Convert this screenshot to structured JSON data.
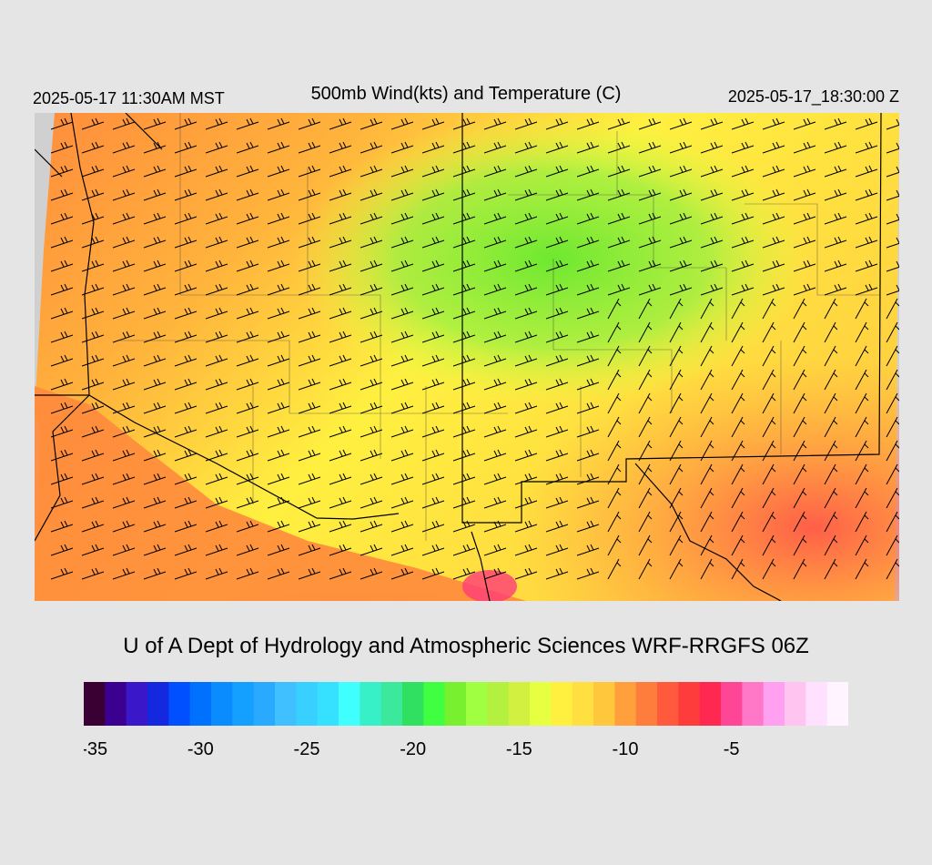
{
  "header": {
    "local_time": "2025-05-17 11:30AM MST",
    "title": "500mb Wind(kts) and Temperature (C)",
    "valid_time": "2025-05-17_18:30:00 Z"
  },
  "credit": "U of A Dept of Hydrology and Atmospheric Sciences WRF-RRGFS 06Z",
  "colorbar": {
    "colors": [
      "#3b0033",
      "#3c0091",
      "#3a17c8",
      "#1428e0",
      "#0050ff",
      "#0070ff",
      "#0a8cff",
      "#14a0ff",
      "#2aaaff",
      "#40c0ff",
      "#38d0ff",
      "#36e0ff",
      "#40ffff",
      "#38f0c8",
      "#3ce89c",
      "#30e060",
      "#40ff40",
      "#78f030",
      "#a0ff40",
      "#b4f040",
      "#d2f040",
      "#e6ff40",
      "#fff040",
      "#ffe040",
      "#ffc83c",
      "#ffa03c",
      "#ff7d3c",
      "#ff5a3c",
      "#ff3c3c",
      "#ff2850",
      "#ff4696",
      "#ff78c8",
      "#ffa0f0",
      "#ffc4f0",
      "#ffe0ff",
      "#fff4ff"
    ],
    "ticks": [
      {
        "label": "-35",
        "index": 0.5
      },
      {
        "label": "-30",
        "index": 5.5
      },
      {
        "label": "-25",
        "index": 10.5
      },
      {
        "label": "-20",
        "index": 15.5
      },
      {
        "label": "-15",
        "index": 20.5
      },
      {
        "label": "-10",
        "index": 25.5
      },
      {
        "label": "-5",
        "index": 30.5
      }
    ]
  }
}
